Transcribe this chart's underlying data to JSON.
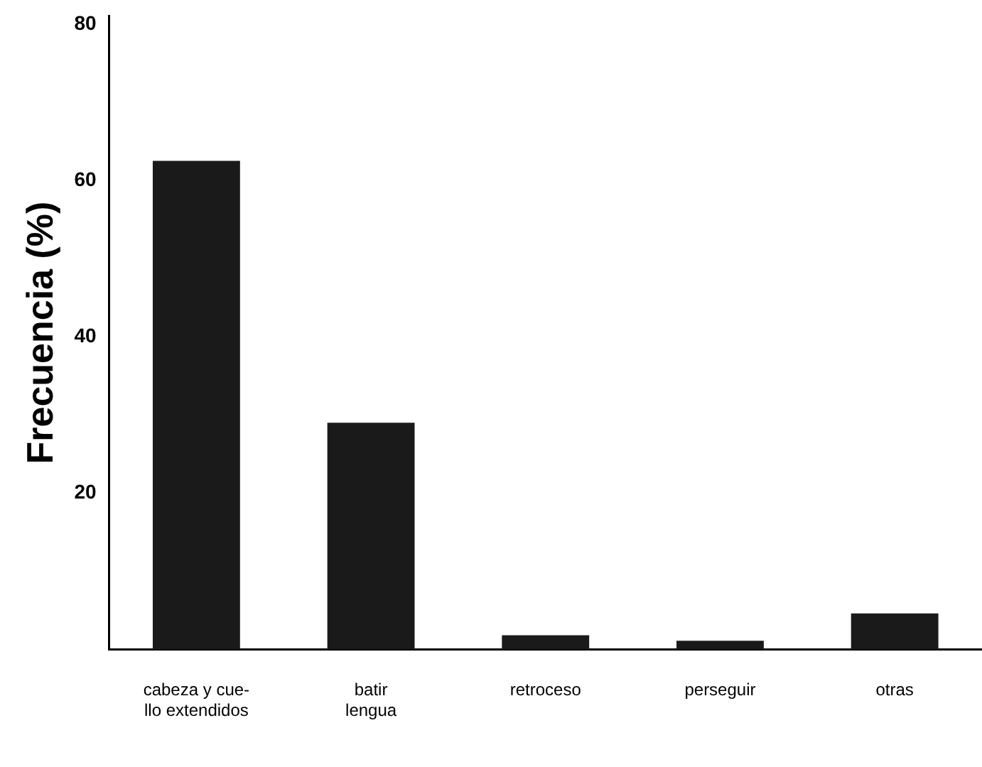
{
  "chart_data": {
    "type": "bar",
    "ylabel": "Frecuencia (%)",
    "categories": [
      "cabeza y cue-\nllo extendidos",
      "batir\nlengua",
      "retroceso",
      "perseguir",
      "otras"
    ],
    "values": [
      62.5,
      29,
      1.8,
      1.1,
      4.6
    ],
    "color": "#1a1a1a",
    "ylim": [
      0,
      81
    ],
    "yticks": [
      20,
      40,
      60,
      80
    ],
    "grid": false,
    "legend": false
  }
}
